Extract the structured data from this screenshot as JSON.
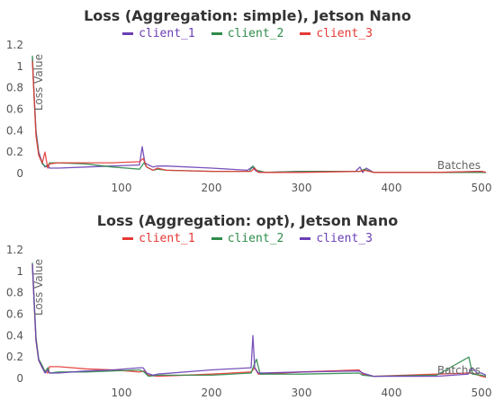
{
  "chart_data": [
    {
      "type": "line",
      "title": "Loss (Aggregation: simple), Jetson Nano",
      "xlabel": "Batches",
      "ylabel": "Loss Value",
      "xlim": [
        1,
        505
      ],
      "ylim": [
        0,
        1.2
      ],
      "xticks": [
        100,
        200,
        300,
        400,
        500
      ],
      "yticks": [
        0,
        0.2,
        0.4,
        0.6,
        0.8,
        1,
        1.2
      ],
      "legend_position": "top-center",
      "grid": false,
      "series": [
        {
          "name": "client_1",
          "color": "#6a3fb5",
          "points": [
            [
              1,
              1.08
            ],
            [
              3,
              0.72
            ],
            [
              5,
              0.4
            ],
            [
              8,
              0.2
            ],
            [
              12,
              0.1
            ],
            [
              15,
              0.06
            ],
            [
              18,
              0.08
            ],
            [
              20,
              0.05
            ],
            [
              30,
              0.05
            ],
            [
              60,
              0.06
            ],
            [
              90,
              0.07
            ],
            [
              120,
              0.08
            ],
            [
              123,
              0.25
            ],
            [
              126,
              0.1
            ],
            [
              130,
              0.08
            ],
            [
              135,
              0.06
            ],
            [
              140,
              0.07
            ],
            [
              150,
              0.07
            ],
            [
              200,
              0.05
            ],
            [
              240,
              0.03
            ],
            [
              245,
              0.06
            ],
            [
              250,
              0.02
            ],
            [
              260,
              0.01
            ],
            [
              300,
              0.02
            ],
            [
              360,
              0.02
            ],
            [
              365,
              0.06
            ],
            [
              368,
              0.01
            ],
            [
              372,
              0.05
            ],
            [
              380,
              0.01
            ],
            [
              400,
              0.01
            ],
            [
              450,
              0.01
            ],
            [
              500,
              0.02
            ],
            [
              505,
              0.01
            ]
          ]
        },
        {
          "name": "client_2",
          "color": "#2e8b4a",
          "points": [
            [
              1,
              1.1
            ],
            [
              3,
              0.7
            ],
            [
              5,
              0.38
            ],
            [
              8,
              0.18
            ],
            [
              12,
              0.09
            ],
            [
              15,
              0.07
            ],
            [
              18,
              0.06
            ],
            [
              20,
              0.1
            ],
            [
              30,
              0.1
            ],
            [
              60,
              0.09
            ],
            [
              90,
              0.06
            ],
            [
              120,
              0.04
            ],
            [
              125,
              0.1
            ],
            [
              128,
              0.06
            ],
            [
              135,
              0.03
            ],
            [
              140,
              0.04
            ],
            [
              150,
              0.03
            ],
            [
              200,
              0.02
            ],
            [
              242,
              0.02
            ],
            [
              246,
              0.07
            ],
            [
              250,
              0.03
            ],
            [
              260,
              0.01
            ],
            [
              300,
              0.02
            ],
            [
              365,
              0.02
            ],
            [
              370,
              0.04
            ],
            [
              380,
              0.01
            ],
            [
              450,
              0.01
            ],
            [
              500,
              0.01
            ],
            [
              505,
              0.01
            ]
          ]
        },
        {
          "name": "client_3",
          "color": "#e53935",
          "points": [
            [
              1,
              1.05
            ],
            [
              3,
              0.7
            ],
            [
              5,
              0.35
            ],
            [
              8,
              0.17
            ],
            [
              12,
              0.1
            ],
            [
              15,
              0.2
            ],
            [
              18,
              0.05
            ],
            [
              20,
              0.09
            ],
            [
              30,
              0.1
            ],
            [
              60,
              0.1
            ],
            [
              90,
              0.1
            ],
            [
              120,
              0.11
            ],
            [
              124,
              0.14
            ],
            [
              128,
              0.06
            ],
            [
              135,
              0.03
            ],
            [
              140,
              0.05
            ],
            [
              150,
              0.03
            ],
            [
              200,
              0.02
            ],
            [
              244,
              0.02
            ],
            [
              248,
              0.05
            ],
            [
              252,
              0.01
            ],
            [
              300,
              0.01
            ],
            [
              365,
              0.02
            ],
            [
              370,
              0.03
            ],
            [
              380,
              0.01
            ],
            [
              450,
              0.01
            ],
            [
              500,
              0.02
            ],
            [
              505,
              0.01
            ]
          ]
        }
      ]
    },
    {
      "type": "line",
      "title": "Loss (Aggregation: opt), Jetson Nano",
      "xlabel": "Batches",
      "ylabel": "Loss Value",
      "xlim": [
        1,
        505
      ],
      "ylim": [
        0,
        1.2
      ],
      "xticks": [
        100,
        200,
        300,
        400,
        500
      ],
      "yticks": [
        0,
        0.2,
        0.4,
        0.6,
        0.8,
        1,
        1.2
      ],
      "legend_position": "top-center",
      "grid": false,
      "series": [
        {
          "name": "client_1",
          "color": "#e53935",
          "points": [
            [
              1,
              1.06
            ],
            [
              3,
              0.7
            ],
            [
              5,
              0.35
            ],
            [
              8,
              0.17
            ],
            [
              12,
              0.1
            ],
            [
              15,
              0.07
            ],
            [
              18,
              0.05
            ],
            [
              20,
              0.11
            ],
            [
              30,
              0.11
            ],
            [
              60,
              0.09
            ],
            [
              90,
              0.08
            ],
            [
              120,
              0.06
            ],
            [
              125,
              0.07
            ],
            [
              130,
              0.03
            ],
            [
              140,
              0.02
            ],
            [
              200,
              0.04
            ],
            [
              244,
              0.06
            ],
            [
              248,
              0.1
            ],
            [
              252,
              0.04
            ],
            [
              300,
              0.06
            ],
            [
              364,
              0.08
            ],
            [
              368,
              0.04
            ],
            [
              380,
              0.02
            ],
            [
              450,
              0.04
            ],
            [
              485,
              0.05
            ],
            [
              490,
              0.05
            ],
            [
              500,
              0.02
            ],
            [
              505,
              0.01
            ]
          ]
        },
        {
          "name": "client_2",
          "color": "#2e8b4a",
          "points": [
            [
              1,
              1.08
            ],
            [
              3,
              0.72
            ],
            [
              5,
              0.38
            ],
            [
              8,
              0.18
            ],
            [
              12,
              0.12
            ],
            [
              15,
              0.06
            ],
            [
              18,
              0.1
            ],
            [
              20,
              0.05
            ],
            [
              30,
              0.06
            ],
            [
              60,
              0.06
            ],
            [
              90,
              0.07
            ],
            [
              120,
              0.08
            ],
            [
              125,
              0.06
            ],
            [
              130,
              0.02
            ],
            [
              140,
              0.03
            ],
            [
              200,
              0.03
            ],
            [
              244,
              0.05
            ],
            [
              247,
              0.12
            ],
            [
              250,
              0.18
            ],
            [
              254,
              0.04
            ],
            [
              300,
              0.04
            ],
            [
              364,
              0.05
            ],
            [
              368,
              0.03
            ],
            [
              380,
              0.02
            ],
            [
              450,
              0.03
            ],
            [
              486,
              0.2
            ],
            [
              490,
              0.04
            ],
            [
              500,
              0.03
            ],
            [
              505,
              0.02
            ]
          ]
        },
        {
          "name": "client_3",
          "color": "#6a3fb5",
          "points": [
            [
              1,
              1.07
            ],
            [
              3,
              0.7
            ],
            [
              5,
              0.36
            ],
            [
              8,
              0.17
            ],
            [
              12,
              0.1
            ],
            [
              15,
              0.05
            ],
            [
              18,
              0.08
            ],
            [
              20,
              0.05
            ],
            [
              30,
              0.05
            ],
            [
              60,
              0.07
            ],
            [
              90,
              0.08
            ],
            [
              120,
              0.1
            ],
            [
              124,
              0.1
            ],
            [
              128,
              0.05
            ],
            [
              135,
              0.03
            ],
            [
              140,
              0.04
            ],
            [
              200,
              0.08
            ],
            [
              244,
              0.1
            ],
            [
              246,
              0.4
            ],
            [
              248,
              0.1
            ],
            [
              252,
              0.05
            ],
            [
              300,
              0.06
            ],
            [
              364,
              0.07
            ],
            [
              368,
              0.05
            ],
            [
              380,
              0.02
            ],
            [
              450,
              0.02
            ],
            [
              485,
              0.04
            ],
            [
              490,
              0.1
            ],
            [
              495,
              0.05
            ],
            [
              500,
              0.05
            ],
            [
              505,
              0.03
            ]
          ]
        }
      ]
    }
  ]
}
